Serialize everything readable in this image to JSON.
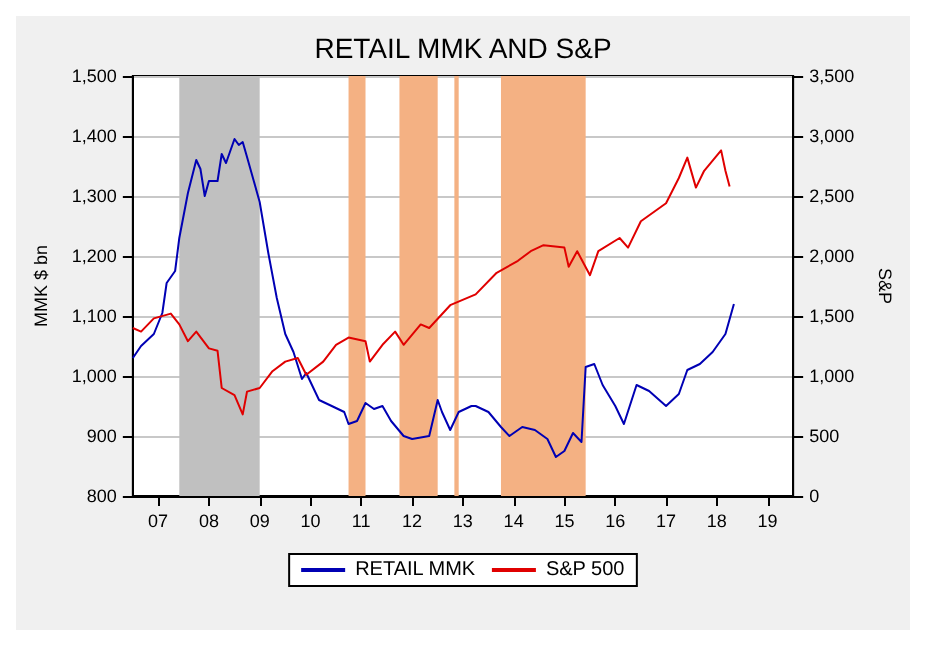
{
  "chart_data": {
    "type": "line",
    "title": "RETAIL MMK AND S&P",
    "ylabel": "MMK $ bn",
    "y2label": "S&P",
    "xlim": [
      "2007-01",
      "2020-01"
    ],
    "xticks": [
      {
        "value": "2007-07",
        "label": "07"
      },
      {
        "value": "2008-07",
        "label": "08"
      },
      {
        "value": "2009-07",
        "label": "09"
      },
      {
        "value": "2010-07",
        "label": "10"
      },
      {
        "value": "2011-07",
        "label": "11"
      },
      {
        "value": "2012-07",
        "label": "12"
      },
      {
        "value": "2013-07",
        "label": "13"
      },
      {
        "value": "2014-07",
        "label": "14"
      },
      {
        "value": "2015-07",
        "label": "15"
      },
      {
        "value": "2016-07",
        "label": "16"
      },
      {
        "value": "2017-07",
        "label": "17"
      },
      {
        "value": "2018-07",
        "label": "18"
      },
      {
        "value": "2019-07",
        "label": "19"
      }
    ],
    "ylim": [
      800,
      1500
    ],
    "yticks": [
      {
        "value": 800,
        "label": "800"
      },
      {
        "value": 900,
        "label": "900"
      },
      {
        "value": 1000,
        "label": "1,000"
      },
      {
        "value": 1100,
        "label": "1,100"
      },
      {
        "value": 1200,
        "label": "1,200"
      },
      {
        "value": 1300,
        "label": "1,300"
      },
      {
        "value": 1400,
        "label": "1,400"
      },
      {
        "value": 1500,
        "label": "1,500"
      }
    ],
    "y2lim": [
      0,
      3500
    ],
    "y2ticks": [
      0,
      {
        "value": 500,
        "label": "500"
      },
      {
        "value": 1000,
        "label": "1,000"
      },
      {
        "value": 1500,
        "label": "1,500"
      },
      {
        "value": 2000,
        "label": "2,000"
      },
      {
        "value": 2500,
        "label": "2,500"
      },
      {
        "value": 3000,
        "label": "3,000"
      },
      {
        "value": 3500,
        "label": "3,500"
      }
    ],
    "grid": "y",
    "legend": "bottom",
    "bands": [
      {
        "axis": "x",
        "from": "2007-12",
        "to": "2009-07",
        "color": "#c0c0c0"
      },
      {
        "axis": "x",
        "from": "2011-04",
        "to": "2011-08",
        "color": "#f4b183"
      },
      {
        "axis": "x",
        "from": "2012-04",
        "to": "2013-01",
        "color": "#f4b183"
      },
      {
        "axis": "x",
        "from": "2013-05",
        "to": "2013-06",
        "color": "#f4b183"
      },
      {
        "axis": "x",
        "from": "2014-04",
        "to": "2015-12",
        "color": "#f4b183"
      }
    ],
    "series": [
      {
        "name": "RETAIL MMK",
        "color": "#0000b4",
        "x": [
          "2007-01",
          "2007-03",
          "2007-06",
          "2007-08",
          "2007-09",
          "2007-11",
          "2007-12",
          "2008-02",
          "2008-04",
          "2008-05",
          "2008-06",
          "2008-07",
          "2008-09",
          "2008-10",
          "2008-11",
          "2009-01",
          "2009-02",
          "2009-03",
          "2009-04",
          "2009-07",
          "2009-09",
          "2009-11",
          "2010-01",
          "2010-03",
          "2010-05",
          "2010-06",
          "2010-09",
          "2010-12",
          "2011-03",
          "2011-04",
          "2011-06",
          "2011-08",
          "2011-10",
          "2011-12",
          "2012-02",
          "2012-05",
          "2012-07",
          "2012-11",
          "2013-01",
          "2013-02",
          "2013-04",
          "2013-06",
          "2013-09",
          "2013-10",
          "2014-01",
          "2014-04",
          "2014-06",
          "2014-09",
          "2014-12",
          "2015-03",
          "2015-05",
          "2015-07",
          "2015-09",
          "2015-11",
          "2015-12",
          "2016-02",
          "2016-04",
          "2016-07",
          "2016-09",
          "2016-12",
          "2017-03",
          "2017-07",
          "2017-10",
          "2017-12",
          "2018-03",
          "2018-06",
          "2018-09",
          "2018-11"
        ],
        "values": [
          1030,
          1050,
          1070,
          1105,
          1155,
          1175,
          1230,
          1305,
          1360,
          1345,
          1300,
          1325,
          1325,
          1370,
          1355,
          1395,
          1385,
          1390,
          1365,
          1290,
          1205,
          1130,
          1070,
          1040,
          995,
          1005,
          960,
          950,
          940,
          920,
          925,
          955,
          945,
          950,
          925,
          900,
          895,
          900,
          960,
          940,
          910,
          940,
          950,
          950,
          940,
          915,
          900,
          915,
          910,
          895,
          865,
          875,
          905,
          890,
          1015,
          1020,
          985,
          950,
          920,
          985,
          975,
          950,
          970,
          1010,
          1020,
          1040,
          1070,
          1120
        ]
      },
      {
        "name": "S&P 500",
        "color": "#e00000",
        "axis": "y2",
        "x": [
          "2007-01",
          "2007-03",
          "2007-06",
          "2007-10",
          "2007-12",
          "2008-02",
          "2008-04",
          "2008-07",
          "2008-09",
          "2008-10",
          "2009-01",
          "2009-03",
          "2009-04",
          "2009-07",
          "2009-10",
          "2010-01",
          "2010-04",
          "2010-06",
          "2010-10",
          "2011-01",
          "2011-04",
          "2011-08",
          "2011-09",
          "2011-12",
          "2012-03",
          "2012-05",
          "2012-09",
          "2012-11",
          "2013-04",
          "2013-10",
          "2014-03",
          "2014-08",
          "2014-11",
          "2015-02",
          "2015-07",
          "2015-08",
          "2015-10",
          "2016-01",
          "2016-03",
          "2016-08",
          "2016-10",
          "2017-01",
          "2017-07",
          "2017-10",
          "2017-12",
          "2018-02",
          "2018-04",
          "2018-08",
          "2018-09",
          "2018-10"
        ],
        "values": [
          1400,
          1370,
          1480,
          1520,
          1430,
          1290,
          1370,
          1230,
          1210,
          900,
          840,
          680,
          870,
          900,
          1040,
          1120,
          1150,
          1010,
          1120,
          1260,
          1320,
          1290,
          1120,
          1260,
          1370,
          1260,
          1430,
          1400,
          1590,
          1680,
          1860,
          1960,
          2040,
          2090,
          2070,
          1910,
          2040,
          1840,
          2040,
          2150,
          2070,
          2290,
          2440,
          2650,
          2820,
          2570,
          2710,
          2880,
          2710,
          2580
        ]
      }
    ]
  }
}
